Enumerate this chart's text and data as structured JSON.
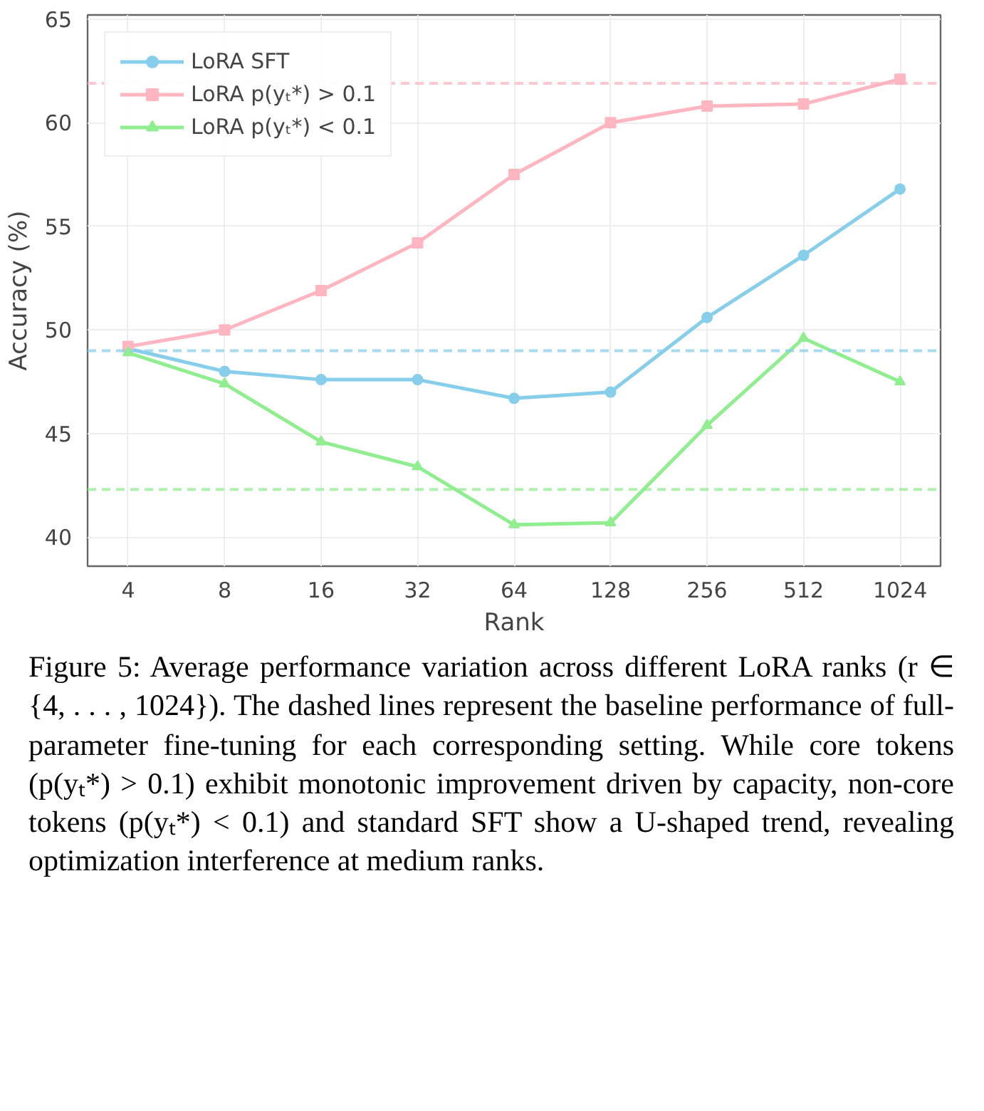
{
  "chart_data": {
    "type": "line",
    "xlabel": "Rank",
    "ylabel": "Accuracy (%)",
    "categories": [
      "4",
      "8",
      "16",
      "32",
      "64",
      "128",
      "256",
      "512",
      "1024"
    ],
    "series": [
      {
        "name": "LoRA SFT",
        "color": "#87ceeb",
        "marker": "circle",
        "values": [
          49.1,
          48.0,
          47.6,
          47.6,
          46.7,
          47.0,
          50.6,
          53.6,
          56.8
        ]
      },
      {
        "name": "LoRA p(yₜ*) > 0.1",
        "color": "#ffb6c1",
        "marker": "square",
        "values": [
          49.2,
          50.0,
          51.9,
          54.2,
          57.5,
          60.0,
          60.8,
          60.9,
          62.1
        ]
      },
      {
        "name": "LoRA p(yₜ*) < 0.1",
        "color": "#90ee90",
        "marker": "triangle",
        "values": [
          48.9,
          47.4,
          44.6,
          43.4,
          40.6,
          40.7,
          45.4,
          49.6,
          47.5
        ]
      }
    ],
    "ref_lines": [
      {
        "axis": "y",
        "value": 61.9,
        "color": "#ffb6c1",
        "line_style": "dashed"
      },
      {
        "axis": "y",
        "value": 49.0,
        "color": "#87ceeb",
        "line_style": "dashed"
      },
      {
        "axis": "y",
        "value": 42.3,
        "color": "#90ee90",
        "line_style": "dashed"
      }
    ],
    "ylim": [
      38.6,
      65.2
    ],
    "yticks": [
      40,
      45,
      50,
      55,
      60,
      65
    ],
    "grid": true,
    "legend": "top left",
    "line_style": "solid",
    "annotations": [
      "Figure 5: Average performance variation across different LoRA ranks (r ∈ {4, . . . , 1024}). The dashed lines represent the baseline performance of full-parameter fine-tuning for each corresponding setting. While core tokens (p(yₜ*) > 0.1) exhibit monotonic improvement driven by capacity, non-core tokens (p(yₜ*) < 0.1) and standard SFT show a U-shaped trend, revealing optimization interference at medium ranks."
    ]
  }
}
